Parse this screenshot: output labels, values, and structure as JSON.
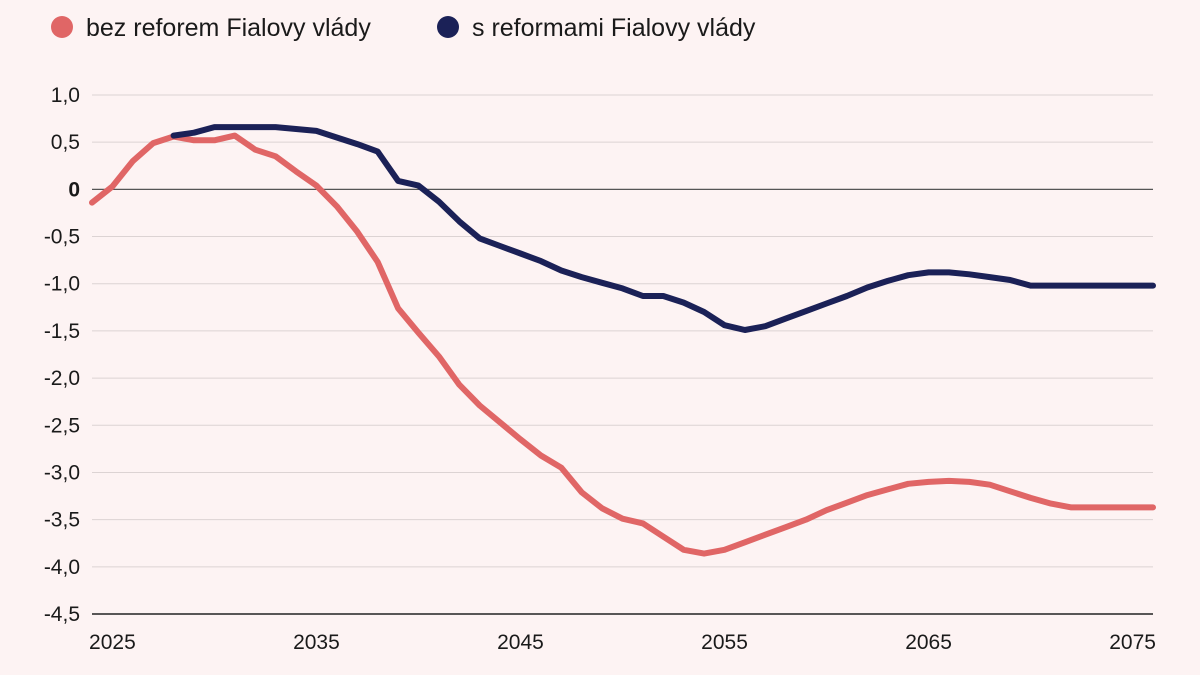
{
  "chart_data": {
    "type": "line",
    "title": "",
    "xlabel": "",
    "ylabel": "",
    "xlim": [
      2024,
      2076
    ],
    "ylim": [
      -4.5,
      1.0
    ],
    "grid": true,
    "legend_position": "top-left",
    "x_ticks": [
      2025,
      2035,
      2045,
      2055,
      2065,
      2075
    ],
    "x_tick_labels": [
      "2025",
      "2035",
      "2045",
      "2055",
      "2065",
      "2075"
    ],
    "y_ticks": [
      1.0,
      0.5,
      0,
      -0.5,
      -1.0,
      -1.5,
      -2.0,
      -2.5,
      -3.0,
      -3.5,
      -4.0,
      -4.5
    ],
    "y_tick_labels": [
      "1,0",
      "0,5",
      "0",
      "-0,5",
      "-1,0",
      "-1,5",
      "-2,0",
      "-2,5",
      "-3,0",
      "-3,5",
      "-4,0",
      "-4,5"
    ],
    "x": [
      2024,
      2025,
      2026,
      2027,
      2028,
      2029,
      2030,
      2031,
      2032,
      2033,
      2034,
      2035,
      2036,
      2037,
      2038,
      2039,
      2040,
      2041,
      2042,
      2043,
      2044,
      2045,
      2046,
      2047,
      2048,
      2049,
      2050,
      2051,
      2052,
      2053,
      2054,
      2055,
      2056,
      2057,
      2058,
      2059,
      2060,
      2061,
      2062,
      2063,
      2064,
      2065,
      2066,
      2067,
      2068,
      2069,
      2070,
      2071,
      2072,
      2073,
      2074,
      2075,
      2076
    ],
    "series": [
      {
        "name": "bez reforem Fialovy vlády",
        "color": "#e06666",
        "values": [
          -0.14,
          0.03,
          0.3,
          0.49,
          0.56,
          0.52,
          0.52,
          0.57,
          0.42,
          0.35,
          0.19,
          0.04,
          -0.18,
          -0.45,
          -0.77,
          -1.26,
          -1.52,
          -1.77,
          -2.07,
          -2.29,
          -2.47,
          -2.65,
          -2.82,
          -2.95,
          -3.21,
          -3.38,
          -3.49,
          -3.54,
          -3.68,
          -3.82,
          -3.86,
          -3.82,
          -3.74,
          -3.66,
          -3.58,
          -3.5,
          -3.4,
          -3.32,
          -3.24,
          -3.18,
          -3.12,
          -3.1,
          -3.09,
          -3.1,
          -3.13,
          -3.2,
          -3.27,
          -3.33,
          -3.37,
          -3.37,
          -3.37,
          -3.37,
          -3.37
        ]
      },
      {
        "name": "s reformami Fialovy vlády",
        "color": "#1b2157",
        "values": [
          null,
          null,
          null,
          null,
          0.57,
          0.6,
          0.66,
          0.66,
          0.66,
          0.66,
          0.64,
          0.62,
          0.55,
          0.48,
          0.4,
          0.09,
          0.04,
          -0.13,
          -0.34,
          -0.52,
          -0.6,
          -0.68,
          -0.76,
          -0.86,
          -0.93,
          -0.99,
          -1.05,
          -1.13,
          -1.13,
          -1.2,
          -1.3,
          -1.44,
          -1.49,
          -1.45,
          -1.37,
          -1.29,
          -1.21,
          -1.13,
          -1.04,
          -0.97,
          -0.91,
          -0.88,
          -0.88,
          -0.9,
          -0.93,
          -0.96,
          -1.02,
          -1.02,
          -1.02,
          -1.02,
          -1.02,
          -1.02,
          -1.02
        ]
      }
    ]
  }
}
